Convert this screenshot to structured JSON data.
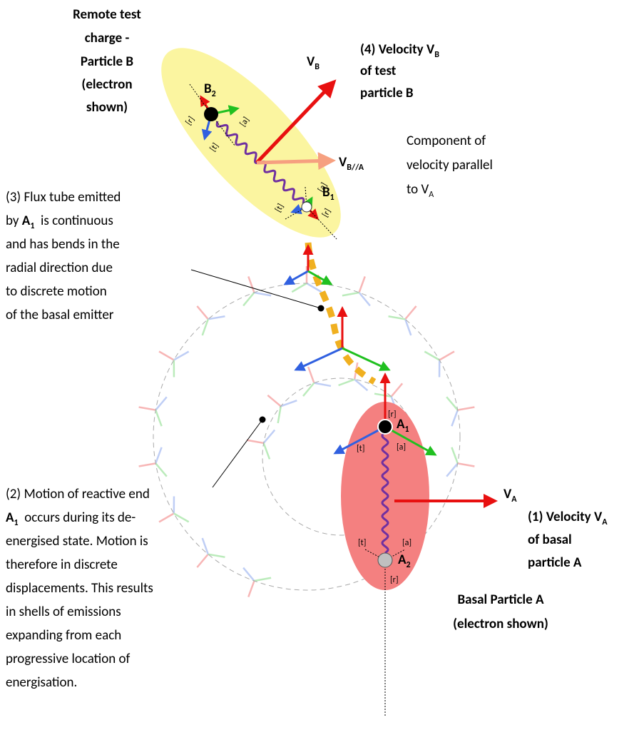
{
  "particle_b": {
    "caption": [
      "Remote test",
      "charge -",
      "Particle B",
      "(electron",
      "shown)"
    ],
    "b2": [
      "B",
      "2"
    ],
    "b1": [
      "B",
      "1"
    ],
    "frame_b2": {
      "r": "[r]",
      "t": "[t]",
      "a": "[a]"
    },
    "frame_b1": {
      "r": "[r]",
      "t": "[t]",
      "a": "[a]"
    }
  },
  "velocity_b": {
    "caption": [
      [
        "(4) Velocity V",
        "B"
      ],
      [
        "of test"
      ],
      [
        "particle B"
      ]
    ],
    "vector": [
      "V",
      "B"
    ],
    "parallel": [
      "V",
      "B//A"
    ],
    "component_caption": [
      [
        "Component of"
      ],
      [
        "velocity parallel"
      ],
      [
        "to V",
        "A"
      ]
    ]
  },
  "flux_tube": {
    "caption": [
      [
        "(3) Flux tube emitted"
      ],
      [
        "by ",
        "A",
        "1",
        "  is continuous"
      ],
      [
        "and has bends in the"
      ],
      [
        "radial direction due"
      ],
      [
        "to discrete motion"
      ],
      [
        "of the basal emitter"
      ]
    ]
  },
  "motion": {
    "caption": [
      [
        "(2) Motion of reactive end"
      ],
      [
        "A",
        "1",
        "  occurs during its de-"
      ],
      [
        "energised state. Motion is"
      ],
      [
        "therefore in discrete"
      ],
      [
        "displacements. This results"
      ],
      [
        "in shells of emissions"
      ],
      [
        "expanding from each"
      ],
      [
        "progressive location of"
      ],
      [
        "energisation."
      ]
    ]
  },
  "particle_a": {
    "a1": [
      "A",
      "1"
    ],
    "a2": [
      "A",
      "2"
    ],
    "frame_a1": {
      "r": "[r]",
      "t": "[t]",
      "a": "[a]"
    },
    "frame_a2": {
      "r": "[r]",
      "t": "[t]",
      "a": "[a]"
    },
    "caption": [
      "Basal Particle A",
      "(electron shown)"
    ]
  },
  "velocity_a": {
    "vector": [
      "V",
      "A"
    ],
    "caption": [
      [
        "(1) Velocity V",
        "A"
      ],
      [
        "of basal"
      ],
      [
        "particle A"
      ]
    ]
  }
}
